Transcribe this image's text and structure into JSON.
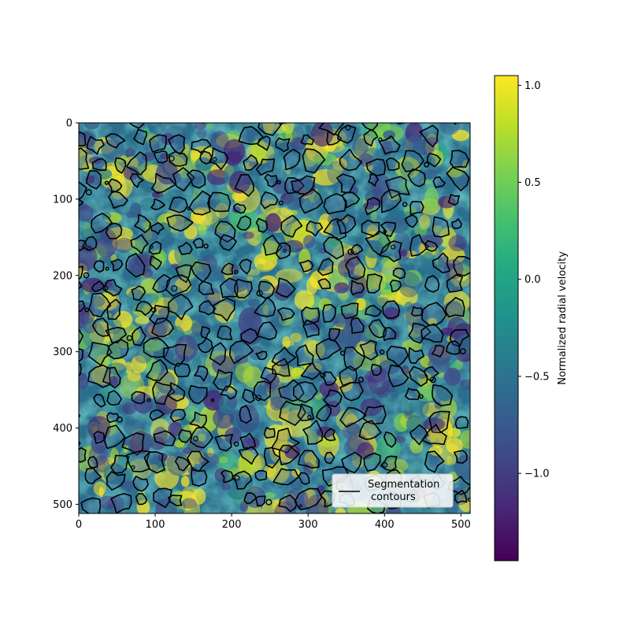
{
  "chart_data": {
    "type": "heatmap",
    "title": "",
    "xlabel": "",
    "ylabel": "",
    "xlim": [
      0,
      512
    ],
    "ylim": [
      512,
      0
    ],
    "x_ticks": [
      0,
      100,
      200,
      300,
      400,
      500
    ],
    "y_ticks": [
      0,
      100,
      200,
      300,
      400,
      500
    ],
    "x_tick_labels": [
      "0",
      "100",
      "200",
      "300",
      "400",
      "500"
    ],
    "y_tick_labels": [
      "0",
      "100",
      "200",
      "300",
      "400",
      "500"
    ],
    "colormap": "viridis",
    "colorbar": {
      "label": "Normalized radial velocity",
      "range": [
        -1.45,
        1.05
      ],
      "ticks": [
        1.0,
        0.5,
        0.0,
        -0.5,
        -1.0
      ],
      "tick_labels": [
        "1.0",
        "0.5",
        "0.0",
        "−0.5",
        "−1.0"
      ]
    },
    "legend": {
      "placement": "bottom-right",
      "entries": [
        {
          "label_line1": "Segmentation",
          "label_line2": "contours",
          "color": "#000000",
          "style": "line"
        }
      ]
    },
    "contour_color": "#000000"
  }
}
